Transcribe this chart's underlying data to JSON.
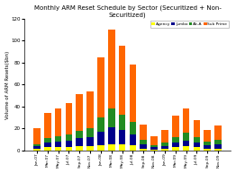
{
  "title": "Monthly ARM Reset Schedule by Sector (Securitized + Non-\nSecuritized)",
  "ylabel": "Volume of ARM Resets($bn)",
  "categories": [
    "Jan-07",
    "Mar-07",
    "May-07",
    "Jul-07",
    "Sep-07",
    "Nov-07",
    "Jan-08",
    "Mar-08",
    "May-08",
    "Jul-08",
    "Sep-08",
    "Nov-08",
    "Jan-09",
    "Mar-09",
    "May-09",
    "Jul-09",
    "Sep-09",
    "Nov-09"
  ],
  "agency": [
    2,
    3,
    3,
    3,
    4,
    4,
    5,
    6,
    6,
    5,
    2,
    1,
    2,
    3,
    4,
    3,
    2,
    2
  ],
  "jumbo": [
    2,
    4,
    5,
    6,
    7,
    8,
    12,
    15,
    13,
    10,
    4,
    2,
    2,
    4,
    5,
    4,
    3,
    4
  ],
  "alt_a": [
    2,
    4,
    5,
    6,
    7,
    8,
    13,
    17,
    14,
    11,
    4,
    2,
    3,
    5,
    7,
    5,
    3,
    4
  ],
  "sub_prime": [
    14,
    23,
    25,
    28,
    33,
    34,
    55,
    72,
    62,
    52,
    14,
    8,
    12,
    20,
    22,
    16,
    11,
    13
  ],
  "colors": {
    "agency": "#ffff00",
    "jumbo": "#00008b",
    "alt_a": "#228b22",
    "sub_prime": "#ff6600"
  },
  "ylim": [
    0,
    120
  ],
  "yticks": [
    0,
    20,
    40,
    60,
    80,
    100,
    120
  ],
  "legend_labels": [
    "Agency",
    "Jumbo",
    "Alt-A",
    "Sub Prime"
  ],
  "background_color": "#ffffff",
  "plot_bg_color": "#ffffff"
}
